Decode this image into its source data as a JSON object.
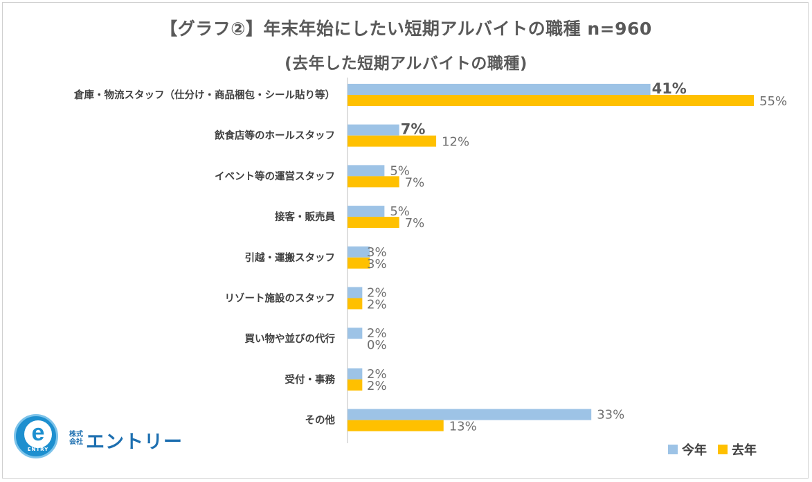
{
  "title": "【グラフ②】年末年始にしたい短期アルバイトの職種 n=960",
  "subtitle": "(去年した短期アルバイトの職種)",
  "colors": {
    "this_year": "#9dc3e6",
    "last_year": "#ffc000",
    "axis": "#bfbfbf"
  },
  "legend": {
    "this_year": "今年",
    "last_year": "去年"
  },
  "logo": {
    "ring_text": "ENTRY",
    "ring_top_text": "We can do it!",
    "small": "株式会社",
    "name": "エントリー",
    "letter": "e"
  },
  "chart_data": {
    "type": "bar",
    "orientation": "horizontal",
    "title": "【グラフ②】年末年始にしたい短期アルバイトの職種 n=960",
    "subtitle": "(去年した短期アルバイトの職種)",
    "categories": [
      "倉庫・物流スタッフ（仕分け・商品梱包・シール貼り等）",
      "飲食店等のホールスタッフ",
      "イベント等の運営スタッフ",
      "接客・販売員",
      "引越・運搬スタッフ",
      "リゾート施設のスタッフ",
      "買い物や並びの代行",
      "受付・事務",
      "その他"
    ],
    "series": [
      {
        "name": "今年",
        "values": [
          41,
          7,
          5,
          5,
          3,
          2,
          2,
          2,
          33
        ],
        "labels": [
          "41%",
          "7%",
          "5%",
          "5%",
          "3%",
          "2%",
          "2%",
          "2%",
          "33%"
        ]
      },
      {
        "name": "去年",
        "values": [
          55,
          12,
          7,
          7,
          3,
          2,
          0,
          2,
          13
        ],
        "labels": [
          "55%",
          "12%",
          "7%",
          "7%",
          "3%",
          "2%",
          "0%",
          "2%",
          "13%"
        ]
      }
    ],
    "xlim": [
      0,
      55
    ],
    "legend_position": "bottom-right",
    "unit": "%"
  }
}
